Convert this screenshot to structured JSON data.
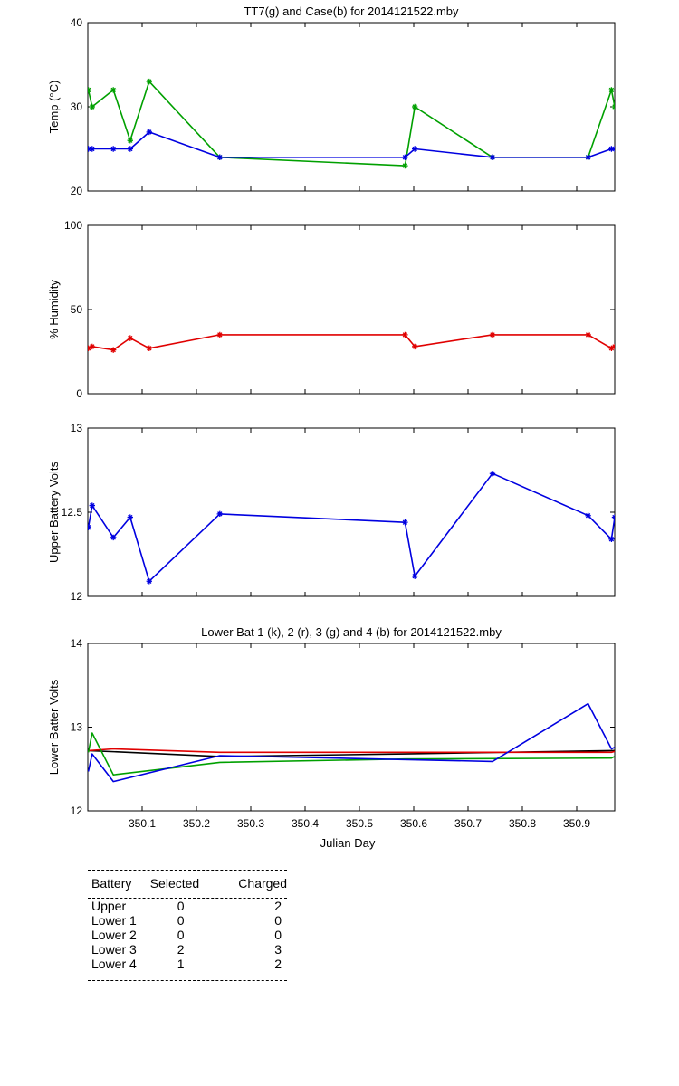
{
  "chart_data": [
    {
      "type": "line",
      "title": "TT7(g) and Case(b) for 2014121522.mby",
      "xlabel": "",
      "ylabel": "Temp  (°C)",
      "xlim": [
        350.0,
        350.97
      ],
      "ylim": [
        20,
        40
      ],
      "yticks": [
        "20",
        "30",
        "40"
      ],
      "xticks": [],
      "grid": false,
      "series": [
        {
          "color": "#00a000",
          "marker": "*",
          "points": [
            [
              350.001,
              32
            ],
            [
              350.008,
              30
            ],
            [
              350.047,
              32
            ],
            [
              350.078,
              26
            ],
            [
              350.113,
              33
            ],
            [
              350.243,
              24
            ],
            [
              350.584,
              23
            ],
            [
              350.602,
              30
            ],
            [
              350.745,
              24
            ],
            [
              350.921,
              24
            ],
            [
              350.964,
              32
            ],
            [
              350.97,
              30
            ]
          ]
        },
        {
          "color": "#0000e0",
          "marker": "*",
          "points": [
            [
              350.001,
              25
            ],
            [
              350.008,
              25
            ],
            [
              350.047,
              25
            ],
            [
              350.078,
              25
            ],
            [
              350.113,
              27
            ],
            [
              350.243,
              24
            ],
            [
              350.584,
              24
            ],
            [
              350.602,
              25
            ],
            [
              350.745,
              24
            ],
            [
              350.921,
              24
            ],
            [
              350.964,
              25
            ],
            [
              350.97,
              25
            ]
          ]
        }
      ]
    },
    {
      "type": "line",
      "title": "",
      "xlabel": "",
      "ylabel": "% Humidity",
      "xlim": [
        350.0,
        350.97
      ],
      "ylim": [
        0,
        100
      ],
      "yticks": [
        "0",
        "50",
        "100"
      ],
      "xticks": [],
      "grid": false,
      "series": [
        {
          "color": "#e00000",
          "marker": "*",
          "points": [
            [
              350.001,
              27
            ],
            [
              350.008,
              28
            ],
            [
              350.047,
              26
            ],
            [
              350.078,
              33
            ],
            [
              350.113,
              27
            ],
            [
              350.243,
              35
            ],
            [
              350.584,
              35
            ],
            [
              350.602,
              28
            ],
            [
              350.745,
              35
            ],
            [
              350.921,
              35
            ],
            [
              350.964,
              27
            ],
            [
              350.97,
              28
            ]
          ]
        }
      ]
    },
    {
      "type": "line",
      "title": "",
      "xlabel": "",
      "ylabel": "Upper Battery Volts",
      "xlim": [
        350.0,
        350.97
      ],
      "ylim": [
        12,
        13
      ],
      "yticks": [
        "12",
        "12.5",
        "13"
      ],
      "xticks": [],
      "grid": false,
      "series": [
        {
          "color": "#0000e0",
          "marker": "*",
          "points": [
            [
              350.001,
              12.41
            ],
            [
              350.008,
              12.54
            ],
            [
              350.047,
              12.35
            ],
            [
              350.078,
              12.47
            ],
            [
              350.113,
              12.09
            ],
            [
              350.243,
              12.49
            ],
            [
              350.584,
              12.44
            ],
            [
              350.602,
              12.12
            ],
            [
              350.745,
              12.73
            ],
            [
              350.921,
              12.48
            ],
            [
              350.964,
              12.34
            ],
            [
              350.97,
              12.47
            ]
          ]
        }
      ]
    },
    {
      "type": "line",
      "title": "Lower Bat 1 (k), 2 (r), 3 (g) and 4 (b) for 2014121522.mby",
      "xlabel": "Julian Day",
      "ylabel": "Lower Batter Volts",
      "xlim": [
        350.0,
        350.97
      ],
      "ylim": [
        12,
        14
      ],
      "yticks": [
        "12",
        "13",
        "14"
      ],
      "xticks": [
        "350.1",
        "350.2",
        "350.3",
        "350.4",
        "350.5",
        "350.6",
        "350.7",
        "350.8",
        "350.9"
      ],
      "grid": false,
      "series": [
        {
          "color": "#000000",
          "marker": "",
          "points": [
            [
              350.001,
              12.72
            ],
            [
              350.243,
              12.65
            ],
            [
              350.584,
              12.68
            ],
            [
              350.964,
              12.72
            ],
            [
              350.97,
              12.72
            ]
          ]
        },
        {
          "color": "#e00000",
          "marker": "",
          "points": [
            [
              350.001,
              12.72
            ],
            [
              350.047,
              12.74
            ],
            [
              350.243,
              12.7
            ],
            [
              350.584,
              12.7
            ],
            [
              350.964,
              12.7
            ],
            [
              350.97,
              12.71
            ]
          ]
        },
        {
          "color": "#00a000",
          "marker": "",
          "points": [
            [
              350.001,
              12.7
            ],
            [
              350.008,
              12.93
            ],
            [
              350.047,
              12.43
            ],
            [
              350.243,
              12.58
            ],
            [
              350.584,
              12.62
            ],
            [
              350.964,
              12.63
            ],
            [
              350.97,
              12.65
            ]
          ]
        },
        {
          "color": "#0000e0",
          "marker": "",
          "points": [
            [
              350.001,
              12.47
            ],
            [
              350.008,
              12.68
            ],
            [
              350.047,
              12.35
            ],
            [
              350.243,
              12.66
            ],
            [
              350.745,
              12.59
            ],
            [
              350.921,
              13.28
            ],
            [
              350.964,
              12.74
            ],
            [
              350.97,
              12.76
            ]
          ]
        }
      ]
    }
  ],
  "battery_table": {
    "headers": [
      "Battery",
      "Selected",
      "Charged"
    ],
    "rows": [
      [
        "Upper",
        "0",
        "2"
      ],
      [
        "Lower 1",
        "0",
        "0"
      ],
      [
        "Lower 2",
        "0",
        "0"
      ],
      [
        "Lower 3",
        "2",
        "3"
      ],
      [
        "Lower 4",
        "1",
        "2"
      ]
    ]
  }
}
